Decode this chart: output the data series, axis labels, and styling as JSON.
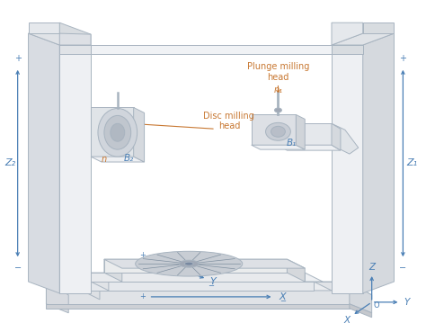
{
  "bg_color": "#ffffff",
  "lc": "#a8b4c0",
  "bc": "#4a7fb5",
  "oc": "#c87832",
  "fc_light": "#eef0f3",
  "fc_mid": "#e0e4e8",
  "fc_dark": "#d0d5dc",
  "fc_side": "#d8dce2",
  "labels": {
    "Z1": "Z₁",
    "Z2": "Z₂",
    "B1": "B₁",
    "B2": "B₂",
    "n1": "n₁",
    "n": "n",
    "plunge": "Plunge milling\nhead",
    "disc": "Disc milling\nhead"
  }
}
